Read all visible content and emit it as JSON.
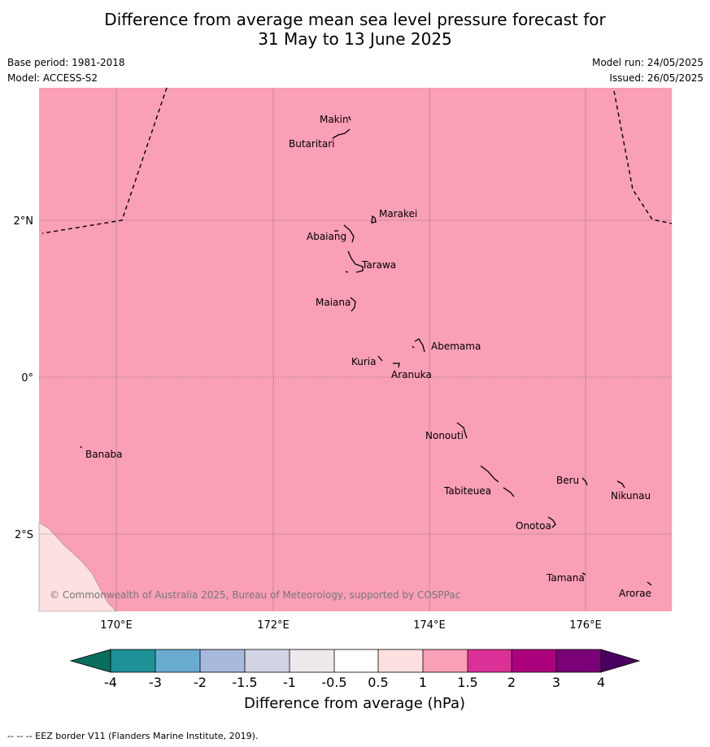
{
  "title_line1": "Difference from average mean sea level pressure forecast for",
  "title_line2": "31 May to 13 June 2025",
  "base_period": "Base period: 1981-2018",
  "model": "Model: ACCESS-S2",
  "model_run": "Model run: 24/05/2025",
  "issued": "Issued: 26/05/2025",
  "lon_labels": [
    "170°E",
    "172°E",
    "174°E",
    "176°E"
  ],
  "lat_labels": [
    "2°N",
    "0°",
    "2°S"
  ],
  "islands": [
    {
      "name": "Makin"
    },
    {
      "name": "Butaritari"
    },
    {
      "name": "Marakei"
    },
    {
      "name": "Abaiang"
    },
    {
      "name": "Tarawa"
    },
    {
      "name": "Maiana"
    },
    {
      "name": "Abemama"
    },
    {
      "name": "Kuria"
    },
    {
      "name": "Aranuka"
    },
    {
      "name": "Nonouti"
    },
    {
      "name": "Banaba"
    },
    {
      "name": "Beru"
    },
    {
      "name": "Nikunau"
    },
    {
      "name": "Tabiteuea"
    },
    {
      "name": "Onotoa"
    },
    {
      "name": "Tamana"
    },
    {
      "name": "Arorae"
    }
  ],
  "copyright": "© Commonwealth of Australia 2025, Bureau of Meteorology, supported by COSPPac",
  "colorbar": {
    "ticks": [
      "-4",
      "-3",
      "-2",
      "-1.5",
      "-1",
      "-0.5",
      "0.5",
      "1",
      "1.5",
      "2",
      "3",
      "4"
    ],
    "colors": [
      "#1e9196",
      "#6aabd2",
      "#a7b9dd",
      "#d3d3e6",
      "#efe9ee",
      "#ffffff",
      "#fde0e0",
      "#f99fb6",
      "#db3196",
      "#ac017c",
      "#7a0177"
    ],
    "low_color": "#0a6e5e",
    "high_color": "#4a0060",
    "label": "Difference from average (hPa)"
  },
  "map_fill": "#f99fb6",
  "corner_fill": "#fde0e0",
  "footnote": "--  --  -- EEZ border V11 (Flanders Marine Institute, 2019)."
}
